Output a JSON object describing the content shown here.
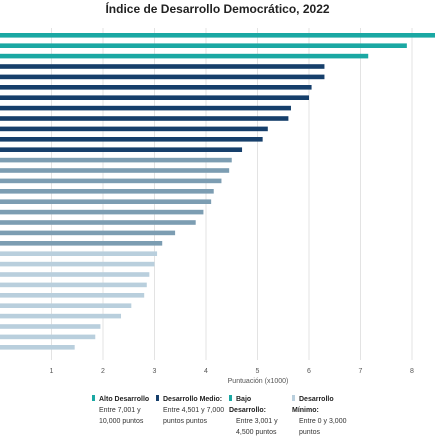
{
  "chart_data": {
    "type": "bar",
    "orientation": "horizontal",
    "title": "Índice de Desarrollo Democrático, 2022",
    "xlabel": "Puntuación (x1000)",
    "ylabel": "",
    "xlim": [
      0,
      8.3
    ],
    "xticks": [
      "1",
      "2",
      "3",
      "4",
      "5",
      "6",
      "7",
      "8"
    ],
    "grid": true,
    "values": [
      8.5,
      7.9,
      7.15,
      6.3,
      6.3,
      6.05,
      6.0,
      5.65,
      5.6,
      5.2,
      5.1,
      4.7,
      4.5,
      4.45,
      4.3,
      4.15,
      4.1,
      3.95,
      3.8,
      3.4,
      3.15,
      3.05,
      3.0,
      2.9,
      2.85,
      2.8,
      2.55,
      2.35,
      1.95,
      1.85,
      1.45
    ],
    "groups": [
      0,
      0,
      0,
      1,
      1,
      1,
      1,
      1,
      1,
      1,
      1,
      1,
      2,
      2,
      2,
      2,
      2,
      2,
      2,
      2,
      2,
      3,
      3,
      3,
      3,
      3,
      3,
      3,
      3,
      3,
      3
    ],
    "colors": [
      "#1aa8a3",
      "#163f6b",
      "#7c9db2",
      "#b9cfdd"
    ],
    "legend": [
      {
        "name": "Alto Desarrollo",
        "desc": "Entre 7,001 y 10,000 puntos"
      },
      {
        "name": "Desarrollo Medio:",
        "desc": "Entre 4,501 y 7,000 puntos puntos"
      },
      {
        "name": "Bajo Desarrollo:",
        "desc": "Entre 3,001 y 4,500 puntos"
      },
      {
        "name": "Desarrollo Mínimo:",
        "desc": "Entre 0 y 3,000 puntos"
      }
    ]
  }
}
